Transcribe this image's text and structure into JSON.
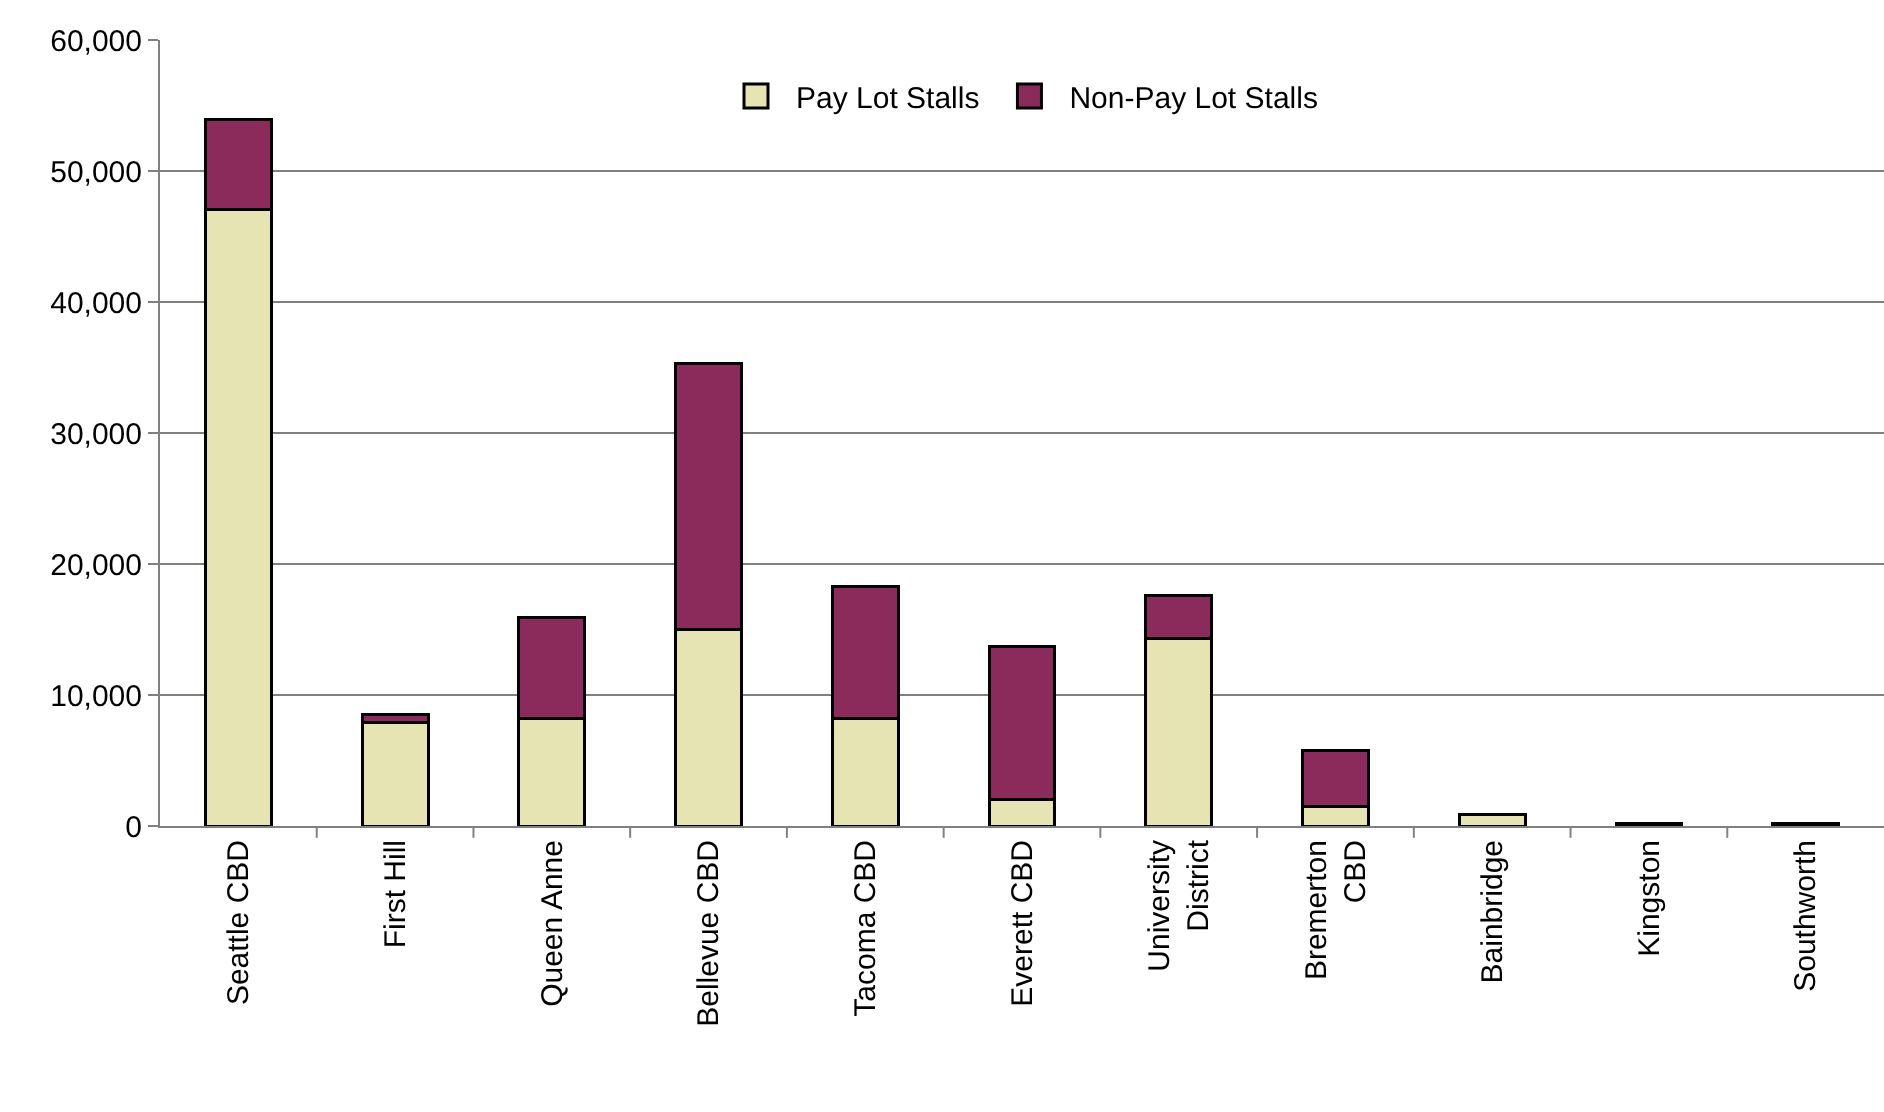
{
  "chart_data": {
    "type": "bar",
    "stacked": true,
    "categories": [
      "Seattle CBD",
      "First Hill",
      "Queen Anne",
      "Bellevue CBD",
      "Tacoma CBD",
      "Everett CBD",
      "University District",
      "Bremerton CBD",
      "Bainbridge",
      "Kingston",
      "Southworth"
    ],
    "series": [
      {
        "name": "Pay Lot Stalls",
        "color": "#e6e4b2",
        "values": [
          47100,
          7900,
          8200,
          15000,
          8200,
          2000,
          14300,
          1500,
          900,
          200,
          200
        ]
      },
      {
        "name": "Non-Pay Lot Stalls",
        "color": "#8a2b5c",
        "values": [
          6800,
          600,
          7700,
          20300,
          10100,
          11700,
          3300,
          4300,
          0,
          0,
          0
        ]
      }
    ],
    "ylim": [
      0,
      60000
    ],
    "yticks": [
      {
        "value": 0,
        "label": "0"
      },
      {
        "value": 10000,
        "label": "10,000"
      },
      {
        "value": 20000,
        "label": "20,000"
      },
      {
        "value": 30000,
        "label": "30,000"
      },
      {
        "value": 40000,
        "label": "40,000"
      },
      {
        "value": 50000,
        "label": "50,000"
      },
      {
        "value": 60000,
        "label": "60,000"
      }
    ],
    "grid": "y",
    "legend": "top"
  }
}
